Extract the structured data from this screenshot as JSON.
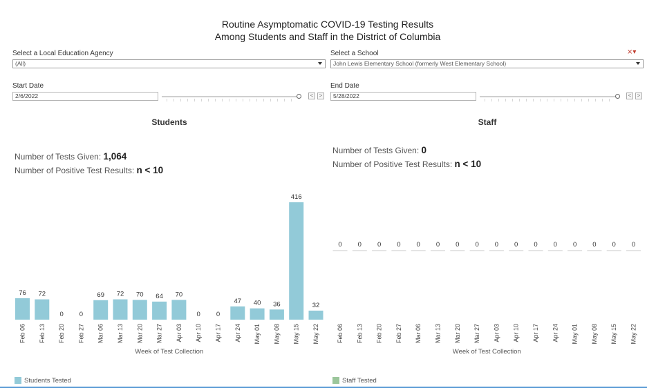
{
  "header": {
    "title_line1": "Routine Asymptomatic COVID-19 Testing Results",
    "title_line2": "Among Students and Staff in the District of Columbia"
  },
  "filters": {
    "lea_label": "Select a Local Education Agency",
    "lea_value": "(All)",
    "school_label": "Select a School",
    "school_value": "John Lewis Elementary School (formerly West Elementary School)",
    "start_label": "Start Date",
    "start_value": "2/6/2022",
    "end_label": "End Date",
    "end_value": "5/28/2022",
    "prev": "<",
    "next": ">"
  },
  "students": {
    "title": "Students",
    "tests_label": "Number of Tests Given:",
    "tests_value": "1,064",
    "positive_label": "Number of Positive Test Results:",
    "positive_value": "n < 10",
    "legend_label": "Students Tested"
  },
  "staff": {
    "title": "Staff",
    "tests_label": "Number of Tests Given:",
    "tests_value": "0",
    "positive_label": "Number of Positive Test Results:",
    "positive_value": "n < 10",
    "legend_label": "Staff Tested"
  },
  "colors": {
    "students_bar": "#92cad8",
    "staff_bar": "#9bc69b",
    "zero_line": "#c8c8c8"
  },
  "chart_data": [
    {
      "type": "bar",
      "title": "Students",
      "xlabel": "Week of Test Collection",
      "ylabel": "",
      "categories": [
        "Feb 06",
        "Feb 13",
        "Feb 20",
        "Feb 27",
        "Mar 06",
        "Mar 13",
        "Mar 20",
        "Mar 27",
        "Apr 03",
        "Apr 10",
        "Apr 17",
        "Apr 24",
        "May 01",
        "May 08",
        "May 15",
        "May 22"
      ],
      "values": [
        76,
        72,
        0,
        0,
        69,
        72,
        70,
        64,
        70,
        0,
        0,
        47,
        40,
        36,
        416,
        32
      ],
      "ylim": [
        0,
        416
      ]
    },
    {
      "type": "bar",
      "title": "Staff",
      "xlabel": "Week of Test Collection",
      "ylabel": "",
      "categories": [
        "Feb 06",
        "Feb 13",
        "Feb 20",
        "Feb 27",
        "Mar 06",
        "Mar 13",
        "Mar 20",
        "Mar 27",
        "Apr 03",
        "Apr 10",
        "Apr 17",
        "Apr 24",
        "May 01",
        "May 08",
        "May 15",
        "May 22"
      ],
      "values": [
        0,
        0,
        0,
        0,
        0,
        0,
        0,
        0,
        0,
        0,
        0,
        0,
        0,
        0,
        0,
        0
      ],
      "ylim": [
        0,
        1
      ]
    }
  ]
}
